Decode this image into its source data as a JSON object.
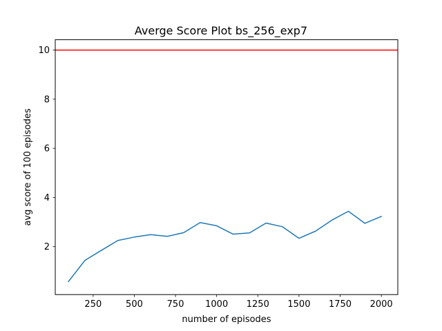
{
  "chart_data": {
    "type": "line",
    "title": "Averge Score Plot bs_256_exp7",
    "xlabel": "number of episodes",
    "ylabel": "avg score of 100 episodes",
    "xlim": [
      20,
      2100
    ],
    "ylim": [
      0.05,
      10.42
    ],
    "grid": false,
    "x_ticks": [
      250,
      500,
      750,
      1000,
      1250,
      1500,
      1750,
      2000
    ],
    "y_ticks": [
      2,
      4,
      6,
      8,
      10
    ],
    "series": [
      {
        "color": "#1f77b4",
        "x": [
          100,
          200,
          300,
          400,
          500,
          600,
          700,
          800,
          900,
          1000,
          1100,
          1200,
          1300,
          1400,
          1500,
          1600,
          1700,
          1800,
          1900,
          2000
        ],
        "values": [
          0.58,
          1.44,
          1.85,
          2.25,
          2.39,
          2.49,
          2.42,
          2.57,
          2.98,
          2.85,
          2.51,
          2.56,
          2.96,
          2.81,
          2.34,
          2.63,
          3.08,
          3.44,
          2.95,
          3.23
        ]
      }
    ],
    "reference_lines": [
      {
        "orientation": "horizontal",
        "value": 10,
        "color": "#ff0000"
      }
    ]
  }
}
